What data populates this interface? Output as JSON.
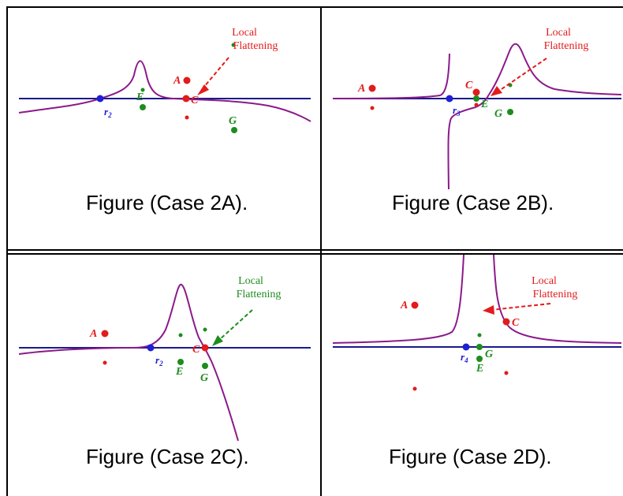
{
  "colors": {
    "axis": "#1a1a8c",
    "curve": "#8b1a8b",
    "red": "#e31b1b",
    "green": "#1e8c1e",
    "blue": "#1f1fd6"
  },
  "panels": [
    {
      "id": "2A",
      "caption": "Figure (Case 2A).",
      "note_line1": "Local",
      "note_line2": "Flattening",
      "labels": {
        "A": "A",
        "C": "C",
        "E": "E",
        "G": "G",
        "r": "r",
        "r_sub": "2"
      }
    },
    {
      "id": "2B",
      "caption": "Figure (Case 2B).",
      "note_line1": "Local",
      "note_line2": "Flattening",
      "labels": {
        "A": "A",
        "C": "C",
        "E": "E",
        "G": "G",
        "r": "r",
        "r_sub": "3"
      }
    },
    {
      "id": "2C",
      "caption": "Figure (Case 2C).",
      "note_line1": "Local",
      "note_line2": "Flattening",
      "labels": {
        "A": "A",
        "C": "C",
        "E": "E",
        "G": "G",
        "r": "r",
        "r_sub": "2"
      }
    },
    {
      "id": "2D",
      "caption": "Figure (Case 2D).",
      "note_line1": "Local",
      "note_line2": "Flattening",
      "labels": {
        "A": "A",
        "C": "C",
        "E": "E",
        "G": "G",
        "r": "r",
        "r_sub": "4"
      }
    }
  ]
}
